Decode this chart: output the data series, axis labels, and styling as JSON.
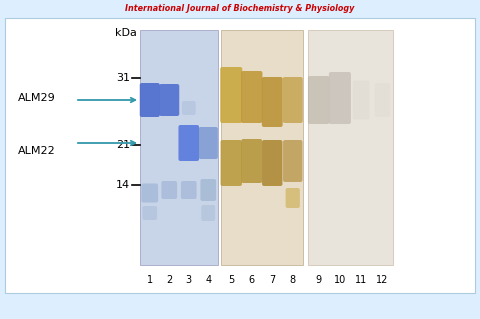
{
  "title_text": "International Journal of Biochemistry & Physiology",
  "title_color": "#cc0000",
  "outer_bg": "#ddeeff",
  "inner_bg": "#ffffff",
  "gel1_bg": "#c8d4e8",
  "gel2_bg": "#e8ddc8",
  "gel3_bg": "#e8e4dc",
  "gel4_bg": "#f0ece8",
  "kda_labels": [
    "31",
    "21",
    "14"
  ],
  "lane_labels": [
    "1",
    "2",
    "3",
    "4",
    "5",
    "6",
    "7",
    "8",
    "9",
    "10",
    "11",
    "12"
  ],
  "alm29_label": "ALM29",
  "alm22_label": "ALM22",
  "arrow_color": "#3399aa"
}
